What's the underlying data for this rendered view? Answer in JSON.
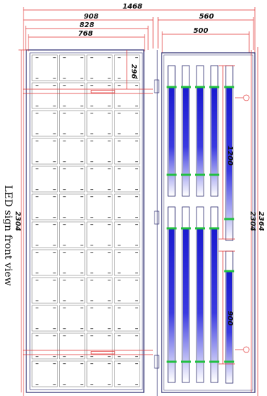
{
  "title": "LED sign front view",
  "dimensions": {
    "overall_width": "1468",
    "front_outer_width": "908",
    "front_mid_width": "828",
    "front_inner_width": "768",
    "side_outer_width": "560",
    "side_inner_width": "500",
    "front_height": "2304",
    "side_height": "2304",
    "side_total_height": "2364",
    "top_offset": "296",
    "tube_upper_length": "1200",
    "tube_lower_length": "900"
  },
  "colors": {
    "outline": "#2a2a6e",
    "dimension": "#e03030",
    "tube_blue": "#1a1ad0",
    "clip_green": "#22c040",
    "grid": "#808080"
  }
}
